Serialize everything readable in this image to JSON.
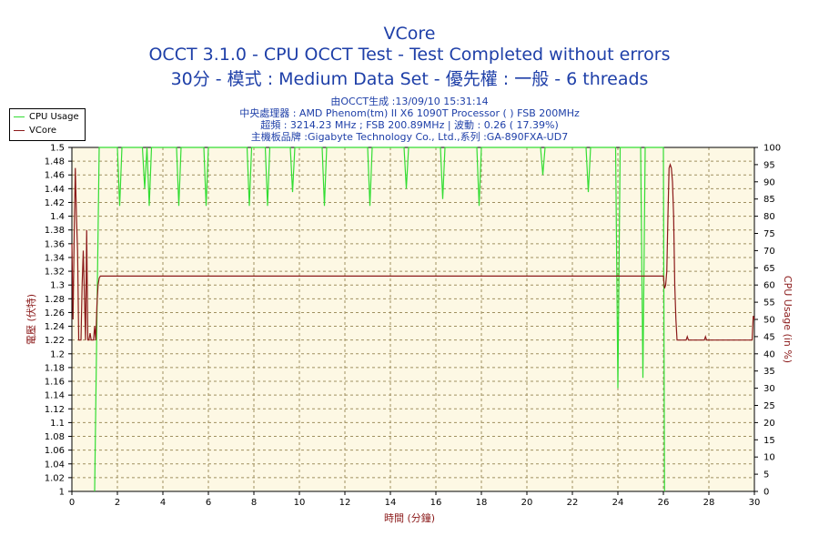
{
  "header": {
    "title": "VCore",
    "line2": "OCCT 3.1.0 - CPU OCCT Test - Test Completed without errors",
    "line3": "30分 - 模式 : Medium Data Set - 優先權 : 一般 - 6 threads",
    "info1": "由OCCT生成 :13/09/10 15:31:14",
    "info2": "中央處理器 : AMD Phenom(tm) II X6 1090T Processor (  ) FSB 200MHz",
    "info3": "超頻 : 3214.23 MHz ; FSB 200.89MHz | 波動 : 0.26 ( 17.39%)",
    "info4": "主機板品牌 :Gigabyte Technology Co., Ltd.,系列 :GA-890FXA-UD7"
  },
  "legend": [
    {
      "label": "CPU Usage",
      "color": "#33dd33"
    },
    {
      "label": "VCore",
      "color": "#8b1a1a"
    }
  ],
  "chart_data": {
    "type": "line",
    "xlabel": "時間 (分鐘)",
    "ylabel_left": "電壓 (伏特)",
    "ylabel_right": "CPU Usage (in %)",
    "xlim": [
      0,
      30
    ],
    "x_ticks": [
      "0",
      "2",
      "4",
      "6",
      "8",
      "10",
      "12",
      "14",
      "16",
      "18",
      "20",
      "22",
      "24",
      "26",
      "28",
      "30"
    ],
    "ylim_left": [
      1,
      1.5
    ],
    "y_ticks_left": [
      "1",
      "1.02",
      "1.04",
      "1.06",
      "1.08",
      "1.1",
      "1.12",
      "1.14",
      "1.16",
      "1.18",
      "1.2",
      "1.22",
      "1.24",
      "1.26",
      "1.28",
      "1.3",
      "1.32",
      "1.34",
      "1.36",
      "1.38",
      "1.4",
      "1.42",
      "1.44",
      "1.46",
      "1.48",
      "1.5"
    ],
    "ylim_right": [
      0,
      100
    ],
    "y_ticks_right": [
      "0",
      "5",
      "10",
      "15",
      "20",
      "25",
      "30",
      "35",
      "40",
      "45",
      "50",
      "55",
      "60",
      "65",
      "70",
      "75",
      "80",
      "85",
      "90",
      "95",
      "100"
    ],
    "grid": true,
    "colors": {
      "plot_bg": "#fdf8e4",
      "grid": "#a09060",
      "vcore": "#8b1a1a",
      "cpu": "#33dd33"
    },
    "series": [
      {
        "name": "CPU Usage",
        "axis": "right",
        "x": [
          0,
          0.9,
          1.0,
          1.1,
          1.2,
          2.0,
          2.1,
          2.2,
          3.1,
          3.2,
          3.3,
          3.4,
          3.5,
          4.6,
          4.7,
          4.8,
          5.8,
          5.9,
          6.0,
          7.7,
          7.8,
          7.9,
          8.5,
          8.6,
          8.7,
          9.6,
          9.7,
          9.8,
          11.0,
          11.1,
          11.2,
          13.0,
          13.1,
          13.2,
          14.6,
          14.7,
          14.8,
          16.2,
          16.3,
          16.4,
          17.8,
          17.9,
          18.0,
          20.6,
          20.7,
          20.8,
          22.6,
          22.7,
          22.8,
          23.9,
          24.0,
          24.1,
          24.2,
          25.0,
          25.1,
          25.2,
          25.4,
          26.0,
          26.05,
          26.1,
          30
        ],
        "y": [
          null,
          null,
          0,
          50,
          100,
          100,
          83,
          100,
          100,
          88,
          100,
          83,
          100,
          100,
          83,
          100,
          100,
          83,
          100,
          100,
          83,
          100,
          100,
          83,
          100,
          100,
          87,
          100,
          100,
          83,
          100,
          100,
          83,
          100,
          100,
          88,
          100,
          100,
          85,
          100,
          100,
          83,
          100,
          100,
          92,
          100,
          100,
          87,
          100,
          100,
          30,
          100,
          100,
          100,
          33,
          100,
          100,
          100,
          0,
          null,
          null
        ]
      },
      {
        "name": "VCore",
        "axis": "left",
        "x": [
          0,
          0.05,
          0.1,
          0.15,
          0.2,
          0.25,
          0.3,
          0.35,
          0.4,
          0.45,
          0.5,
          0.6,
          0.65,
          0.7,
          0.75,
          0.8,
          0.85,
          0.9,
          0.95,
          1.0,
          1.05,
          1.1,
          1.15,
          1.2,
          1.25,
          26.0,
          26.05,
          26.1,
          26.15,
          26.2,
          26.25,
          26.3,
          26.35,
          26.4,
          26.45,
          26.5,
          26.55,
          26.6,
          27.0,
          27.05,
          27.1,
          27.8,
          27.85,
          27.9,
          28.0,
          29.5,
          29.9,
          29.95,
          30.0
        ],
        "y": [
          1.36,
          1.25,
          1.37,
          1.47,
          1.4,
          1.35,
          1.22,
          1.22,
          1.22,
          1.3,
          1.35,
          1.22,
          1.38,
          1.22,
          1.22,
          1.23,
          1.22,
          1.22,
          1.22,
          1.24,
          1.22,
          1.27,
          1.3,
          1.31,
          1.313,
          1.313,
          1.295,
          1.3,
          1.32,
          1.4,
          1.47,
          1.475,
          1.47,
          1.45,
          1.4,
          1.3,
          1.25,
          1.22,
          1.22,
          1.225,
          1.22,
          1.22,
          1.225,
          1.22,
          1.22,
          1.22,
          1.22,
          1.255,
          1.25
        ]
      }
    ]
  }
}
